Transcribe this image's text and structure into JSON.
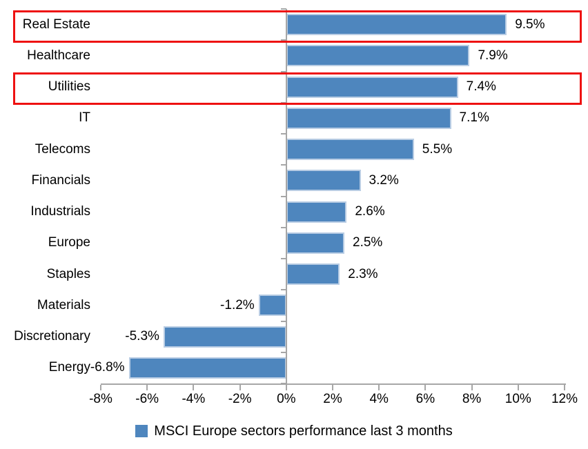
{
  "chart_data": {
    "type": "bar",
    "orientation": "horizontal",
    "legend": "MSCI Europe sectors performance last 3 months",
    "legend_position": "bottom",
    "categories": [
      "Real Estate",
      "Healthcare",
      "Utilities",
      "IT",
      "Telecoms",
      "Financials",
      "Industrials",
      "Europe",
      "Staples",
      "Materials",
      "Discretionary",
      "Energy"
    ],
    "values": [
      9.5,
      7.9,
      7.4,
      7.1,
      5.5,
      3.2,
      2.6,
      2.5,
      2.3,
      -1.2,
      -5.3,
      -6.8
    ],
    "value_labels": [
      "9.5%",
      "7.9%",
      "7.4%",
      "7.1%",
      "5.5%",
      "3.2%",
      "2.6%",
      "2.5%",
      "2.3%",
      "-1.2%",
      "-5.3%",
      "-6.8%"
    ],
    "x_ticks": [
      "-8%",
      "-6%",
      "-4%",
      "-2%",
      "0%",
      "2%",
      "4%",
      "6%",
      "8%",
      "10%",
      "12%"
    ],
    "xlim": [
      -8,
      12
    ],
    "grid": "off",
    "highlighted_categories": [
      "Real Estate",
      "Utilities"
    ],
    "colors": {
      "bar": "#4E86BE",
      "bar_border": "#B9CDE4",
      "axis": "#A6A6A6",
      "highlight": "#EE1111",
      "text": "#000000"
    }
  }
}
